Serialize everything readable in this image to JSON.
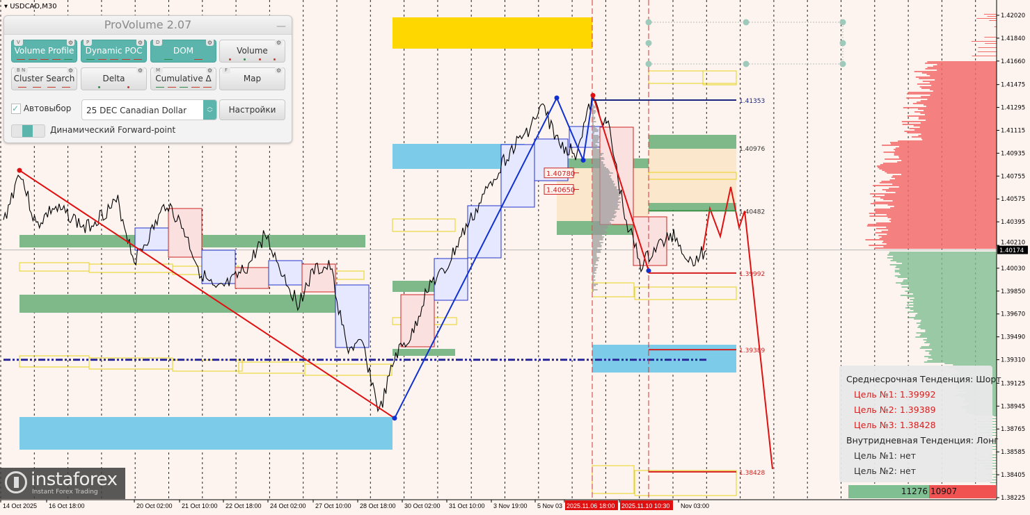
{
  "symbol_label": "USDCAD,M30",
  "panel": {
    "title": "ProVolume 2.07",
    "minimize_icon": "minimize-icon",
    "buttons": [
      {
        "label": "Volume Profile",
        "key": "V",
        "active": true
      },
      {
        "label": "Dynamic POC",
        "key": "P",
        "active": true
      },
      {
        "label": "DOM",
        "key": "D",
        "active": true
      },
      {
        "label": "Volume",
        "key": "",
        "active": false
      },
      {
        "label": "Cluster Search",
        "key": "B  N",
        "active": false
      },
      {
        "label": "Delta",
        "key": "",
        "active": false
      },
      {
        "label": "Cumulative Δ",
        "key": "M",
        "active": false
      },
      {
        "label": "Map",
        "key": "F",
        "active": false
      }
    ],
    "autoselect_label": "Автовыбор",
    "autoselect_checked": true,
    "instrument_value": "25 DEC Canadian Dollar",
    "settings_label": "Настройки",
    "forward_point_label": "Динамический Forward-point",
    "accent_color": "#5bb5ad"
  },
  "chart_data": {
    "type": "line",
    "instrument": "USDCAD",
    "timeframe": "M30",
    "ylim": [
      1.3819,
      1.4215
    ],
    "grid": "vertical dashed",
    "y_ticks": [
      "1.42020",
      "1.41840",
      "1.41660",
      "1.41475",
      "1.41295",
      "1.41115",
      "1.40935",
      "1.40755",
      "1.40575",
      "1.40395",
      "1.40210",
      "1.40030",
      "1.39850",
      "1.39670",
      "1.39490",
      "1.39310",
      "1.39125",
      "1.38945",
      "1.38765",
      "1.38585",
      "1.38405",
      "1.38225"
    ],
    "x_ticks": [
      "14 Oct 2025",
      "16 Oct 18:00",
      "20 Oct 02:00",
      "21 Oct 10:00",
      "22 Oct 18:00",
      "24 Oct 02:00",
      "27 Oct 10:00",
      "28 Oct 18:00",
      "30 Oct 02:00",
      "31 Oct 10:00",
      "3 Nov 19:00",
      "5 Nov 03",
      "2025.11.06 18:00",
      "2025.11.10 10:30",
      "Nov 03:00"
    ],
    "highlighted_x_ticks": [
      "2025.11.06 18:00",
      "2025.11.10 10:30"
    ],
    "current_price": "1.40174",
    "price_path": [
      1.4039,
      1.408,
      1.4036,
      1.405,
      1.4045,
      1.4034,
      1.4045,
      1.4055,
      1.4009,
      1.403,
      1.4055,
      1.4034,
      1.4001,
      1.3984,
      1.3992,
      1.4005,
      1.403,
      1.4001,
      1.3975,
      1.4001,
      1.4004,
      1.394,
      1.3942,
      1.3889,
      1.3935,
      1.395,
      1.399,
      1.4,
      1.4028,
      1.405,
      1.4075,
      1.4095,
      1.411,
      1.413,
      1.41,
      1.4094,
      1.4135,
      1.4115,
      1.4045,
      1.4005,
      1.402,
      1.403,
      1.4008,
      1.4017
    ],
    "levels": [
      {
        "label": "1.41353",
        "price": 1.41353,
        "color": "#1a237e"
      },
      {
        "label": "1.40976",
        "price": 1.40976,
        "color": "#333333"
      },
      {
        "label": "1.40482",
        "price": 1.40482,
        "color": "#333333"
      },
      {
        "label": "1.39992",
        "price": 1.39992,
        "color": "#d42020"
      },
      {
        "label": "1.39389",
        "price": 1.39389,
        "color": "#d42020"
      },
      {
        "label": "1.38428",
        "price": 1.38428,
        "color": "#d42020"
      }
    ],
    "boxed_labels": [
      {
        "label": "1.40780",
        "price": 1.4078
      },
      {
        "label": "1.40650",
        "price": 1.4065
      }
    ],
    "zigzag_down": [
      1.408,
      1.3885
    ],
    "zigzag_up": [
      1.3885,
      1.4137,
      1.4088,
      1.4139
    ],
    "zigzag_down2": [
      1.4139,
      1.4001
    ],
    "forecast_path": [
      1.4017,
      1.405,
      1.4028,
      1.4067,
      1.4035,
      1.4048,
      1.3845
    ],
    "poc_line_price": 1.3931,
    "colors": {
      "bullish_profile": "#7fbf92",
      "bearish_profile": "#f26b6b",
      "zone_green": "#7fb98a",
      "zone_blue": "#7ccbe8",
      "zone_yellow": "#ffd700",
      "trend_red": "#e01010",
      "trend_blue": "#1030d0"
    }
  },
  "trend_box": {
    "mid_term": "Среднесрочная Тенденция: Шорт",
    "mid_targets": [
      "Цель №1: 1.39992",
      "Цель №2: 1.39389",
      "Цель №3: 1.38428"
    ],
    "intraday": "Внутридневная Тенденция: Лонг",
    "intraday_targets": [
      "Цель №1: нет",
      "Цель №2: нет"
    ]
  },
  "dom_volume": {
    "buy": "11276",
    "sell": "10907"
  },
  "watermark": {
    "brand": "instaforex",
    "tagline": "Instant Forex Trading"
  }
}
